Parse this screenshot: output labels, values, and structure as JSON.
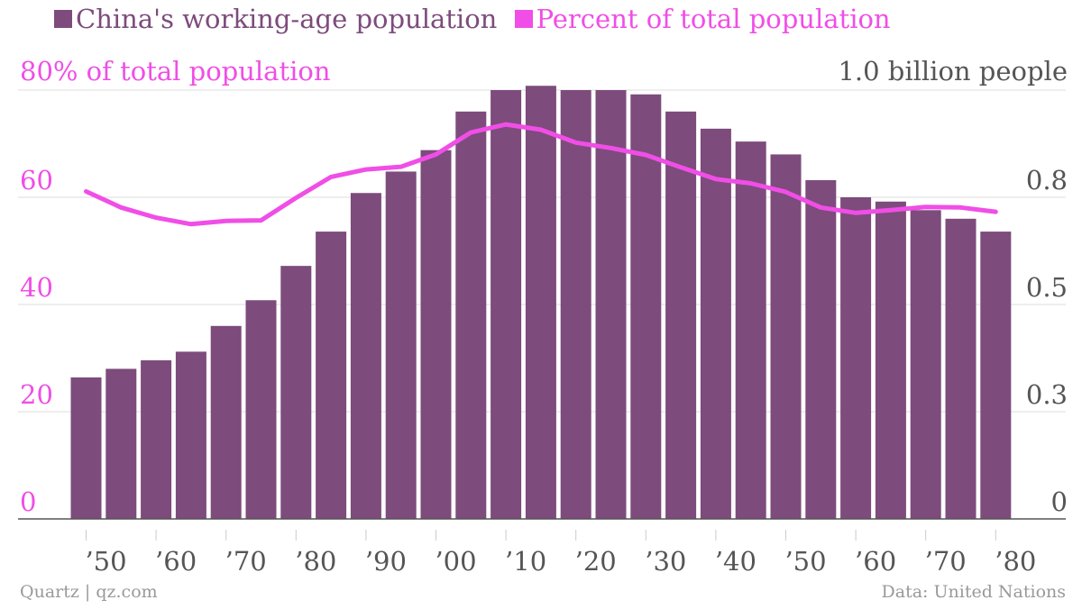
{
  "colors": {
    "bar": "#7d4b7c",
    "line": "#f04ee6",
    "grid": "#dddddd",
    "axis": "#555555",
    "right_tick": "#555555",
    "footer": "#999999"
  },
  "legend": [
    {
      "label": "China's working-age population",
      "color": "#7d4b7c"
    },
    {
      "label": "Percent of total population",
      "color": "#f04ee6"
    }
  ],
  "left_axis_unit": "80% of total population",
  "right_axis_unit": "1.0 billion people",
  "footer": {
    "source_left": "Quartz | qz.com",
    "source_right": "Data: United Nations"
  },
  "chart_data": {
    "type": "bar+line",
    "x": [
      1950,
      1955,
      1960,
      1965,
      1970,
      1975,
      1980,
      1985,
      1990,
      1995,
      2000,
      2005,
      2010,
      2015,
      2020,
      2025,
      2030,
      2035,
      2040,
      2045,
      2050,
      2055,
      2060,
      2065,
      2070,
      2075,
      2080
    ],
    "x_tick_labels": [
      "’50",
      "’60",
      "’70",
      "’80",
      "’90",
      "’00",
      "’10",
      "’20",
      "’30",
      "’40",
      "’50",
      "’60",
      "’70",
      "’80"
    ],
    "series": [
      {
        "name": "China's working-age population",
        "kind": "bar",
        "axis": "right",
        "values": [
          0.33,
          0.35,
          0.37,
          0.39,
          0.45,
          0.51,
          0.59,
          0.67,
          0.76,
          0.81,
          0.86,
          0.95,
          1.0,
          1.01,
          1.0,
          1.0,
          0.99,
          0.95,
          0.91,
          0.88,
          0.85,
          0.79,
          0.75,
          0.74,
          0.72,
          0.7,
          0.67
        ]
      },
      {
        "name": "Percent of total population",
        "kind": "line",
        "axis": "left",
        "values": [
          61.1,
          58.1,
          56.2,
          55.0,
          55.6,
          55.7,
          59.9,
          63.8,
          65.2,
          65.7,
          68.0,
          72.1,
          73.6,
          72.6,
          70.2,
          69.2,
          67.9,
          65.6,
          63.4,
          62.6,
          61.0,
          58.1,
          57.1,
          57.6,
          58.2,
          58.1,
          57.3
        ]
      }
    ],
    "left_axis": {
      "ticks": [
        "0",
        "20",
        "40",
        "60"
      ],
      "tick_values": [
        0,
        20,
        40,
        60
      ],
      "top_value": 80,
      "range": [
        0,
        80
      ]
    },
    "right_axis": {
      "ticks": [
        "0",
        "0.3",
        "0.5",
        "0.8"
      ],
      "tick_values": [
        0,
        0.25,
        0.5,
        0.75
      ],
      "top_value": 1.0,
      "range": [
        0,
        1.0
      ]
    },
    "grid": true,
    "legend_position": "top-left"
  }
}
